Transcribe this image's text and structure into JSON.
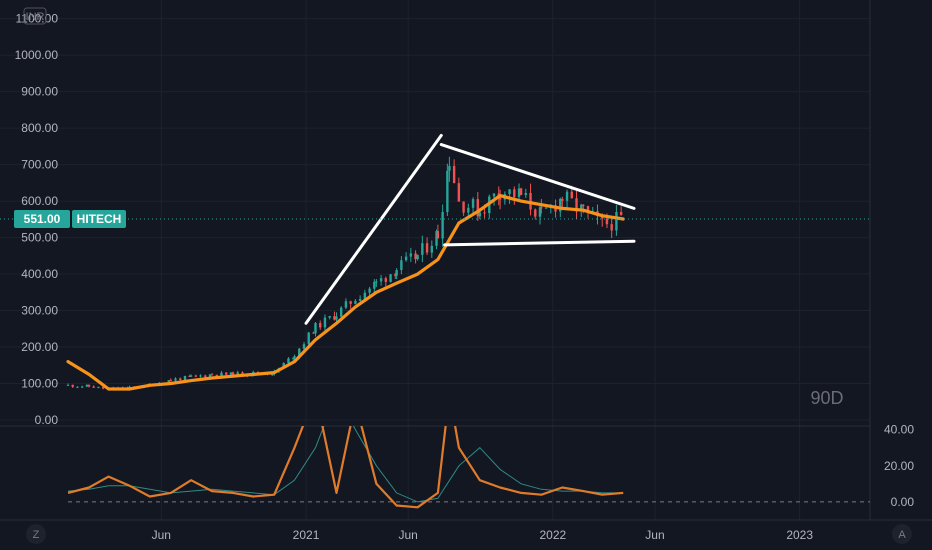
{
  "currency_badge": "INR",
  "watermark": "90D",
  "price_tag": {
    "price": "551.00",
    "symbol": "HITECH",
    "color": "#26a69a"
  },
  "y_tick_labels": [
    "1100.00",
    "1000.00",
    "900.00",
    "800.00",
    "700.00",
    "600.00",
    "500.00",
    "400.00",
    "300.00",
    "200.00",
    "100.00",
    "0.00"
  ],
  "y_ticks": [
    1100,
    1000,
    900,
    800,
    700,
    600,
    500,
    400,
    300,
    200,
    100,
    0
  ],
  "x_tick_labels": [
    "Jun",
    "2021",
    "Jun",
    "2022",
    "Jun",
    "2023"
  ],
  "x_ticks": [
    "2020-06-01",
    "2021-01-01",
    "2021-06-01",
    "2022-01-01",
    "2022-06-01",
    "2023-01-01"
  ],
  "indicator_tick_labels": [
    "40.00",
    "20.00",
    "0.00"
  ],
  "indicator_ticks": [
    40,
    20,
    0
  ],
  "left_button": "Z",
  "right_button": "A",
  "colors": {
    "up": "#26a69a",
    "down": "#ef5350",
    "ma": "#f7931a",
    "trendline": "#ffffff",
    "indicator_main": "#e07b2a",
    "indicator_signal": "#2e8b87"
  },
  "chart_data": {
    "type": "candlestick",
    "x_range": [
      "2020-01-15",
      "2023-04-15"
    ],
    "ylim": [
      0,
      1110
    ],
    "price": [
      {
        "date": "2020-01-15",
        "close": 95
      },
      {
        "date": "2020-02-15",
        "close": 92
      },
      {
        "date": "2020-03-15",
        "close": 85
      },
      {
        "date": "2020-04-15",
        "close": 88
      },
      {
        "date": "2020-05-15",
        "close": 95
      },
      {
        "date": "2020-06-15",
        "close": 110
      },
      {
        "date": "2020-07-15",
        "close": 118
      },
      {
        "date": "2020-08-15",
        "close": 125
      },
      {
        "date": "2020-09-15",
        "close": 125
      },
      {
        "date": "2020-10-15",
        "close": 128
      },
      {
        "date": "2020-11-15",
        "close": 130
      },
      {
        "date": "2020-12-15",
        "close": 180
      },
      {
        "date": "2021-01-15",
        "close": 255
      },
      {
        "date": "2021-02-15",
        "close": 290
      },
      {
        "date": "2021-03-15",
        "close": 335
      },
      {
        "date": "2021-04-15",
        "close": 375
      },
      {
        "date": "2021-05-15",
        "close": 415
      },
      {
        "date": "2021-06-15",
        "close": 450
      },
      {
        "date": "2021-07-15",
        "close": 510
      },
      {
        "date": "2021-08-01",
        "close": 720
      },
      {
        "date": "2021-08-15",
        "close": 600
      },
      {
        "date": "2021-09-15",
        "close": 575
      },
      {
        "date": "2021-10-15",
        "close": 630
      },
      {
        "date": "2021-11-15",
        "close": 615
      },
      {
        "date": "2021-12-15",
        "close": 560
      },
      {
        "date": "2022-01-15",
        "close": 610
      },
      {
        "date": "2022-02-15",
        "close": 570
      },
      {
        "date": "2022-03-15",
        "close": 535
      },
      {
        "date": "2022-04-15",
        "close": 551
      }
    ],
    "moving_average": [
      {
        "date": "2020-01-15",
        "value": 160
      },
      {
        "date": "2020-02-15",
        "value": 125
      },
      {
        "date": "2020-03-15",
        "value": 85
      },
      {
        "date": "2020-04-15",
        "value": 85
      },
      {
        "date": "2020-05-15",
        "value": 95
      },
      {
        "date": "2020-06-15",
        "value": 100
      },
      {
        "date": "2020-07-15",
        "value": 108
      },
      {
        "date": "2020-08-15",
        "value": 115
      },
      {
        "date": "2020-09-15",
        "value": 120
      },
      {
        "date": "2020-10-15",
        "value": 125
      },
      {
        "date": "2020-11-15",
        "value": 130
      },
      {
        "date": "2020-12-15",
        "value": 160
      },
      {
        "date": "2021-01-15",
        "value": 220
      },
      {
        "date": "2021-02-15",
        "value": 265
      },
      {
        "date": "2021-03-15",
        "value": 310
      },
      {
        "date": "2021-04-15",
        "value": 350
      },
      {
        "date": "2021-05-15",
        "value": 375
      },
      {
        "date": "2021-06-15",
        "value": 400
      },
      {
        "date": "2021-07-15",
        "value": 440
      },
      {
        "date": "2021-08-15",
        "value": 540
      },
      {
        "date": "2021-09-15",
        "value": 575
      },
      {
        "date": "2021-10-15",
        "value": 615
      },
      {
        "date": "2021-11-15",
        "value": 600
      },
      {
        "date": "2021-12-15",
        "value": 590
      },
      {
        "date": "2022-01-15",
        "value": 580
      },
      {
        "date": "2022-02-15",
        "value": 575
      },
      {
        "date": "2022-03-15",
        "value": 560
      },
      {
        "date": "2022-04-15",
        "value": 551
      }
    ],
    "trendlines": [
      {
        "from": {
          "date": "2021-01-01",
          "value": 265
        },
        "to": {
          "date": "2021-07-20",
          "value": 780
        }
      },
      {
        "from": {
          "date": "2021-07-20",
          "value": 755
        },
        "to": {
          "date": "2022-05-01",
          "value": 580
        }
      },
      {
        "from": {
          "date": "2021-07-25",
          "value": 480
        },
        "to": {
          "date": "2022-05-01",
          "value": 490
        }
      }
    ],
    "indicator": {
      "ylim": [
        -10,
        42
      ],
      "zero_line": 0,
      "main": [
        {
          "date": "2020-01-15",
          "value": 5
        },
        {
          "date": "2020-02-15",
          "value": 8
        },
        {
          "date": "2020-03-15",
          "value": 14
        },
        {
          "date": "2020-04-15",
          "value": 9
        },
        {
          "date": "2020-05-15",
          "value": 3
        },
        {
          "date": "2020-06-15",
          "value": 5
        },
        {
          "date": "2020-07-15",
          "value": 12
        },
        {
          "date": "2020-08-15",
          "value": 6
        },
        {
          "date": "2020-09-15",
          "value": 5
        },
        {
          "date": "2020-10-15",
          "value": 3
        },
        {
          "date": "2020-11-15",
          "value": 4
        },
        {
          "date": "2020-12-15",
          "value": 30
        },
        {
          "date": "2021-01-15",
          "value": 60
        },
        {
          "date": "2021-02-15",
          "value": 5
        },
        {
          "date": "2021-03-15",
          "value": 55
        },
        {
          "date": "2021-04-15",
          "value": 10
        },
        {
          "date": "2021-05-15",
          "value": -2
        },
        {
          "date": "2021-06-15",
          "value": -3
        },
        {
          "date": "2021-07-15",
          "value": 5
        },
        {
          "date": "2021-08-01",
          "value": 60
        },
        {
          "date": "2021-08-15",
          "value": 30
        },
        {
          "date": "2021-09-15",
          "value": 12
        },
        {
          "date": "2021-10-15",
          "value": 8
        },
        {
          "date": "2021-11-15",
          "value": 5
        },
        {
          "date": "2021-12-15",
          "value": 4
        },
        {
          "date": "2022-01-15",
          "value": 8
        },
        {
          "date": "2022-02-15",
          "value": 6
        },
        {
          "date": "2022-03-15",
          "value": 4
        },
        {
          "date": "2022-04-15",
          "value": 5
        }
      ],
      "signal": [
        {
          "date": "2020-01-15",
          "value": 6
        },
        {
          "date": "2020-02-15",
          "value": 7
        },
        {
          "date": "2020-03-15",
          "value": 9
        },
        {
          "date": "2020-04-15",
          "value": 9
        },
        {
          "date": "2020-05-15",
          "value": 7
        },
        {
          "date": "2020-06-15",
          "value": 5
        },
        {
          "date": "2020-07-15",
          "value": 6
        },
        {
          "date": "2020-08-15",
          "value": 7
        },
        {
          "date": "2020-09-15",
          "value": 6
        },
        {
          "date": "2020-10-15",
          "value": 5
        },
        {
          "date": "2020-11-15",
          "value": 4
        },
        {
          "date": "2020-12-15",
          "value": 12
        },
        {
          "date": "2021-01-15",
          "value": 30
        },
        {
          "date": "2021-02-15",
          "value": 60
        },
        {
          "date": "2021-03-15",
          "value": 40
        },
        {
          "date": "2021-04-15",
          "value": 20
        },
        {
          "date": "2021-05-15",
          "value": 5
        },
        {
          "date": "2021-06-15",
          "value": 0
        },
        {
          "date": "2021-07-15",
          "value": 2
        },
        {
          "date": "2021-08-15",
          "value": 20
        },
        {
          "date": "2021-09-15",
          "value": 30
        },
        {
          "date": "2021-10-15",
          "value": 18
        },
        {
          "date": "2021-11-15",
          "value": 10
        },
        {
          "date": "2021-12-15",
          "value": 7
        },
        {
          "date": "2022-01-15",
          "value": 6
        },
        {
          "date": "2022-02-15",
          "value": 6
        },
        {
          "date": "2022-03-15",
          "value": 5
        },
        {
          "date": "2022-04-15",
          "value": 5
        }
      ]
    }
  }
}
